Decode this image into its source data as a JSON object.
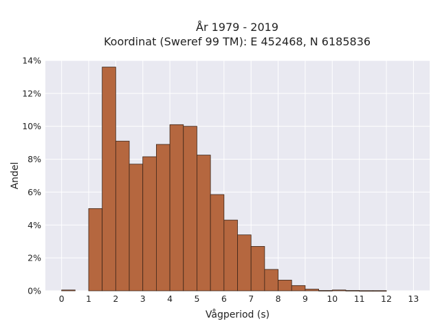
{
  "chart_data": {
    "type": "bar",
    "title": [
      "År 1979 - 2019",
      "Koordinat (Sweref 99 TM): E 452468, N 6185836"
    ],
    "xlabel": "Vågperiod (s)",
    "ylabel": "Andel",
    "xlim": [
      -0.6,
      13.6
    ],
    "ylim": [
      0,
      14
    ],
    "xticks": [
      0,
      1,
      2,
      3,
      4,
      5,
      6,
      7,
      8,
      9,
      10,
      11,
      12,
      13
    ],
    "yticks": [
      0,
      2,
      4,
      6,
      8,
      10,
      12,
      14
    ],
    "ytick_suffix": "%",
    "grid": true,
    "bin_width": 0.5,
    "bins": [
      {
        "x0": 0.0,
        "value": 0.05
      },
      {
        "x0": 0.5,
        "value": 0.0
      },
      {
        "x0": 1.0,
        "value": 5.0
      },
      {
        "x0": 1.5,
        "value": 13.6
      },
      {
        "x0": 2.0,
        "value": 9.1
      },
      {
        "x0": 2.5,
        "value": 7.7
      },
      {
        "x0": 3.0,
        "value": 8.15
      },
      {
        "x0": 3.5,
        "value": 8.9
      },
      {
        "x0": 4.0,
        "value": 10.1
      },
      {
        "x0": 4.5,
        "value": 10.0
      },
      {
        "x0": 5.0,
        "value": 8.25
      },
      {
        "x0": 5.5,
        "value": 5.85
      },
      {
        "x0": 6.0,
        "value": 4.3
      },
      {
        "x0": 6.5,
        "value": 3.4
      },
      {
        "x0": 7.0,
        "value": 2.7
      },
      {
        "x0": 7.5,
        "value": 1.3
      },
      {
        "x0": 8.0,
        "value": 0.65
      },
      {
        "x0": 8.5,
        "value": 0.32
      },
      {
        "x0": 9.0,
        "value": 0.1
      },
      {
        "x0": 9.5,
        "value": 0.02
      },
      {
        "x0": 10.0,
        "value": 0.05
      },
      {
        "x0": 10.5,
        "value": 0.02
      },
      {
        "x0": 11.0,
        "value": 0.01
      },
      {
        "x0": 11.5,
        "value": 0.01
      }
    ]
  },
  "colors": {
    "background": "#ffffff",
    "plot_background": "#e9e9f1",
    "grid": "#ffffff",
    "bar_fill": "#b5673f",
    "bar_stroke": "#3a2418",
    "text": "#222222"
  }
}
